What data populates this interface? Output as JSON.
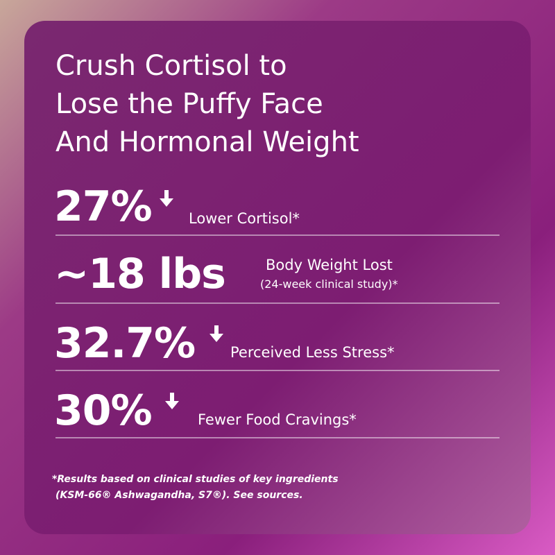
{
  "headline": {
    "lines": [
      "Crush Cortisol to",
      "Lose the Puffy Face",
      "And Hormonal Weight"
    ]
  },
  "stats": [
    {
      "value": "27%",
      "label": "Lower Cortisol*"
    },
    {
      "value": "~18 lbs",
      "label": "Body Weight Lost",
      "sublabel": "(24-week clinical study)*"
    },
    {
      "value": "32.7%",
      "label": "Perceived Less Stress*"
    },
    {
      "value": "30%",
      "label": "Fewer Food Cravings*"
    }
  ],
  "footnote": {
    "lines": [
      "*Results based on clinical studies of key ingredients",
      "(KSM-66® Ashwagandha, S7®). See sources."
    ]
  }
}
